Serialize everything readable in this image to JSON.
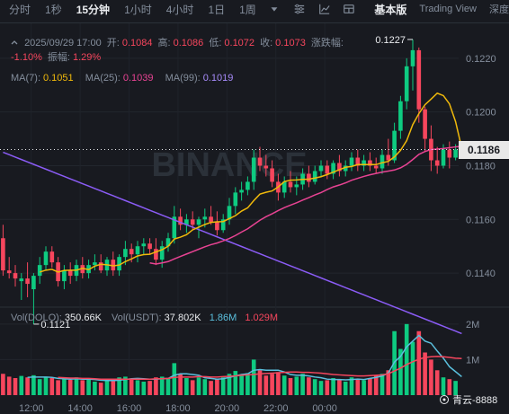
{
  "toolbar": {
    "timeframes": [
      "分时",
      "1秒",
      "15分钟",
      "1小时",
      "4小时",
      "1日",
      "1周"
    ],
    "active_timeframe": "15分钟",
    "view_basic": "基本版",
    "view_tradingview": "Trading View",
    "view_depth": "深度"
  },
  "ohlc_info": {
    "datetime": "2025/09/29 17:00",
    "open_label": "开:",
    "open": "0.1084",
    "high_label": "高:",
    "high": "0.1086",
    "low_label": "低:",
    "low": "0.1072",
    "close_label": "收:",
    "close": "0.1073",
    "change_label": "涨跌幅:",
    "change": "-1.10%",
    "amplitude_label": "振幅:",
    "amplitude": "1.29%"
  },
  "ma_info": {
    "ma7_label": "MA(7):",
    "ma7": "0.1051",
    "ma25_label": "MA(25):",
    "ma25": "0.1039",
    "ma99_label": "MA(99):",
    "ma99": "0.1019"
  },
  "volume_info": {
    "vol_label": "Vol(DOLO):",
    "vol": "350.66K",
    "usdt_label": "Vol(USDT):",
    "usdt": "37.802K",
    "ma_a": "1.86M",
    "ma_b": "1.029M"
  },
  "current_price": "0.1186",
  "watermark": "BINANCE",
  "credit": "青云-8888",
  "colors": {
    "up": "#0ecb81",
    "down": "#f6465d",
    "ma7": "#f0b90b",
    "ma25": "#e84393",
    "ma99": "#8b5cf6",
    "vol_ma_a": "#5bc0de",
    "vol_ma_b": "#f6465d"
  },
  "chart_data": {
    "type": "candlestick",
    "price_axis": {
      "ticks": [
        "0.1220",
        "0.1200",
        "0.1180",
        "0.1160",
        "0.1140"
      ],
      "range": [
        0.1128,
        0.1233
      ]
    },
    "volume_axis": {
      "ticks": [
        "2M",
        "1M"
      ],
      "range": [
        0,
        2400000
      ]
    },
    "time_axis": [
      "12:00",
      "14:00",
      "16:00",
      "18:00",
      "20:00",
      "22:00",
      "00:00"
    ],
    "annotations": {
      "high": "0.1227",
      "low": "0.1121"
    },
    "candles": [
      {
        "o": 0.1153,
        "h": 0.1158,
        "l": 0.1139,
        "c": 0.1141,
        "v": 600000
      },
      {
        "o": 0.1141,
        "h": 0.1146,
        "l": 0.1138,
        "c": 0.114,
        "v": 520000
      },
      {
        "o": 0.114,
        "h": 0.1143,
        "l": 0.1135,
        "c": 0.1138,
        "v": 480000
      },
      {
        "o": 0.1137,
        "h": 0.114,
        "l": 0.113,
        "c": 0.1138,
        "v": 540000
      },
      {
        "o": 0.1138,
        "h": 0.1144,
        "l": 0.1131,
        "c": 0.1136,
        "v": 500000
      },
      {
        "o": 0.1134,
        "h": 0.114,
        "l": 0.1121,
        "c": 0.1139,
        "v": 560000
      },
      {
        "o": 0.1139,
        "h": 0.1146,
        "l": 0.1136,
        "c": 0.1143,
        "v": 450000
      },
      {
        "o": 0.1143,
        "h": 0.115,
        "l": 0.1141,
        "c": 0.1148,
        "v": 520000
      },
      {
        "o": 0.1148,
        "h": 0.115,
        "l": 0.1142,
        "c": 0.1144,
        "v": 480000
      },
      {
        "o": 0.1144,
        "h": 0.1146,
        "l": 0.1135,
        "c": 0.1137,
        "v": 420000
      },
      {
        "o": 0.1137,
        "h": 0.1143,
        "l": 0.1134,
        "c": 0.1141,
        "v": 460000
      },
      {
        "o": 0.1141,
        "h": 0.1144,
        "l": 0.1136,
        "c": 0.1139,
        "v": 430000
      },
      {
        "o": 0.1139,
        "h": 0.1145,
        "l": 0.1137,
        "c": 0.1143,
        "v": 500000
      },
      {
        "o": 0.1143,
        "h": 0.1146,
        "l": 0.1138,
        "c": 0.114,
        "v": 420000
      },
      {
        "o": 0.114,
        "h": 0.1145,
        "l": 0.1138,
        "c": 0.1143,
        "v": 470000
      },
      {
        "o": 0.1143,
        "h": 0.1147,
        "l": 0.1141,
        "c": 0.1144,
        "v": 380000
      },
      {
        "o": 0.1144,
        "h": 0.1147,
        "l": 0.114,
        "c": 0.1141,
        "v": 350000
      },
      {
        "o": 0.1141,
        "h": 0.1146,
        "l": 0.1139,
        "c": 0.1145,
        "v": 450000
      },
      {
        "o": 0.1145,
        "h": 0.1148,
        "l": 0.1139,
        "c": 0.1141,
        "v": 400000
      },
      {
        "o": 0.1141,
        "h": 0.1147,
        "l": 0.1139,
        "c": 0.1146,
        "v": 500000
      },
      {
        "o": 0.1146,
        "h": 0.1152,
        "l": 0.1143,
        "c": 0.1149,
        "v": 520000
      },
      {
        "o": 0.1149,
        "h": 0.1151,
        "l": 0.1144,
        "c": 0.1147,
        "v": 450000
      },
      {
        "o": 0.1147,
        "h": 0.1152,
        "l": 0.1144,
        "c": 0.115,
        "v": 420000
      },
      {
        "o": 0.115,
        "h": 0.1153,
        "l": 0.1147,
        "c": 0.1151,
        "v": 380000
      },
      {
        "o": 0.1151,
        "h": 0.1153,
        "l": 0.1147,
        "c": 0.1149,
        "v": 400000
      },
      {
        "o": 0.1149,
        "h": 0.1153,
        "l": 0.1143,
        "c": 0.1145,
        "v": 500000
      },
      {
        "o": 0.1145,
        "h": 0.1152,
        "l": 0.1142,
        "c": 0.115,
        "v": 520000
      },
      {
        "o": 0.115,
        "h": 0.1155,
        "l": 0.1148,
        "c": 0.1153,
        "v": 480000
      },
      {
        "o": 0.1153,
        "h": 0.1165,
        "l": 0.1151,
        "c": 0.1161,
        "v": 900000
      },
      {
        "o": 0.1161,
        "h": 0.1164,
        "l": 0.1156,
        "c": 0.1158,
        "v": 600000
      },
      {
        "o": 0.1158,
        "h": 0.1162,
        "l": 0.1155,
        "c": 0.116,
        "v": 480000
      },
      {
        "o": 0.116,
        "h": 0.1163,
        "l": 0.1156,
        "c": 0.1158,
        "v": 420000
      },
      {
        "o": 0.1158,
        "h": 0.1161,
        "l": 0.1153,
        "c": 0.116,
        "v": 500000
      },
      {
        "o": 0.116,
        "h": 0.1164,
        "l": 0.1157,
        "c": 0.1161,
        "v": 450000
      },
      {
        "o": 0.1161,
        "h": 0.1165,
        "l": 0.1158,
        "c": 0.1159,
        "v": 400000
      },
      {
        "o": 0.1159,
        "h": 0.1163,
        "l": 0.1154,
        "c": 0.1156,
        "v": 460000
      },
      {
        "o": 0.1156,
        "h": 0.1162,
        "l": 0.1155,
        "c": 0.116,
        "v": 500000
      },
      {
        "o": 0.116,
        "h": 0.1168,
        "l": 0.1158,
        "c": 0.1165,
        "v": 600000
      },
      {
        "o": 0.1165,
        "h": 0.1172,
        "l": 0.1162,
        "c": 0.117,
        "v": 680000
      },
      {
        "o": 0.117,
        "h": 0.1174,
        "l": 0.1167,
        "c": 0.1171,
        "v": 580000
      },
      {
        "o": 0.1171,
        "h": 0.1176,
        "l": 0.1169,
        "c": 0.1174,
        "v": 620000
      },
      {
        "o": 0.1174,
        "h": 0.1186,
        "l": 0.1171,
        "c": 0.1183,
        "v": 1000000
      },
      {
        "o": 0.1183,
        "h": 0.1187,
        "l": 0.1178,
        "c": 0.118,
        "v": 700000
      },
      {
        "o": 0.118,
        "h": 0.1184,
        "l": 0.1176,
        "c": 0.1179,
        "v": 550000
      },
      {
        "o": 0.1179,
        "h": 0.1182,
        "l": 0.1172,
        "c": 0.1174,
        "v": 600000
      },
      {
        "o": 0.1174,
        "h": 0.1177,
        "l": 0.1167,
        "c": 0.117,
        "v": 650000
      },
      {
        "o": 0.117,
        "h": 0.1176,
        "l": 0.1168,
        "c": 0.1174,
        "v": 550000
      },
      {
        "o": 0.1174,
        "h": 0.1178,
        "l": 0.117,
        "c": 0.1172,
        "v": 480000
      },
      {
        "o": 0.1172,
        "h": 0.1176,
        "l": 0.1169,
        "c": 0.1173,
        "v": 520000
      },
      {
        "o": 0.1173,
        "h": 0.1179,
        "l": 0.1171,
        "c": 0.1177,
        "v": 600000
      },
      {
        "o": 0.1177,
        "h": 0.118,
        "l": 0.1172,
        "c": 0.1174,
        "v": 500000
      },
      {
        "o": 0.1174,
        "h": 0.118,
        "l": 0.1173,
        "c": 0.1178,
        "v": 450000
      },
      {
        "o": 0.1178,
        "h": 0.1182,
        "l": 0.1176,
        "c": 0.118,
        "v": 400000
      },
      {
        "o": 0.118,
        "h": 0.1182,
        "l": 0.1175,
        "c": 0.1177,
        "v": 420000
      },
      {
        "o": 0.1177,
        "h": 0.1182,
        "l": 0.1175,
        "c": 0.1181,
        "v": 480000
      },
      {
        "o": 0.1181,
        "h": 0.1184,
        "l": 0.1176,
        "c": 0.1178,
        "v": 450000
      },
      {
        "o": 0.1178,
        "h": 0.1182,
        "l": 0.1176,
        "c": 0.118,
        "v": 380000
      },
      {
        "o": 0.118,
        "h": 0.1185,
        "l": 0.1178,
        "c": 0.1183,
        "v": 500000
      },
      {
        "o": 0.1183,
        "h": 0.1186,
        "l": 0.1178,
        "c": 0.118,
        "v": 450000
      },
      {
        "o": 0.118,
        "h": 0.1184,
        "l": 0.1178,
        "c": 0.1182,
        "v": 420000
      },
      {
        "o": 0.1182,
        "h": 0.1185,
        "l": 0.1178,
        "c": 0.118,
        "v": 480000
      },
      {
        "o": 0.118,
        "h": 0.1183,
        "l": 0.1177,
        "c": 0.1179,
        "v": 550000
      },
      {
        "o": 0.1179,
        "h": 0.1186,
        "l": 0.1177,
        "c": 0.1184,
        "v": 600000
      },
      {
        "o": 0.1184,
        "h": 0.119,
        "l": 0.118,
        "c": 0.1182,
        "v": 700000
      },
      {
        "o": 0.1182,
        "h": 0.1196,
        "l": 0.1181,
        "c": 0.1193,
        "v": 1800000
      },
      {
        "o": 0.1193,
        "h": 0.1206,
        "l": 0.119,
        "c": 0.1204,
        "v": 1300000
      },
      {
        "o": 0.1204,
        "h": 0.122,
        "l": 0.1201,
        "c": 0.1217,
        "v": 2000000
      },
      {
        "o": 0.1217,
        "h": 0.1227,
        "l": 0.1208,
        "c": 0.1223,
        "v": 1500000
      },
      {
        "o": 0.1223,
        "h": 0.1224,
        "l": 0.1196,
        "c": 0.1201,
        "v": 1800000
      },
      {
        "o": 0.1201,
        "h": 0.1202,
        "l": 0.1185,
        "c": 0.119,
        "v": 1200000
      },
      {
        "o": 0.119,
        "h": 0.1195,
        "l": 0.1178,
        "c": 0.1182,
        "v": 1000000
      },
      {
        "o": 0.1182,
        "h": 0.1187,
        "l": 0.1177,
        "c": 0.118,
        "v": 700000
      },
      {
        "o": 0.118,
        "h": 0.1188,
        "l": 0.1179,
        "c": 0.1186,
        "v": 500000
      },
      {
        "o": 0.1186,
        "h": 0.1189,
        "l": 0.1179,
        "c": 0.1183,
        "v": 450000
      },
      {
        "o": 0.1183,
        "h": 0.1188,
        "l": 0.1182,
        "c": 0.1186,
        "v": 400000
      }
    ],
    "ma7": [
      null,
      null,
      null,
      null,
      null,
      null,
      0.11404,
      0.11411,
      0.11414,
      0.11404,
      0.1141,
      0.11411,
      0.11411,
      0.11418,
      0.11413,
      0.11426,
      0.11433,
      0.11431,
      0.11427,
      0.1143,
      0.11443,
      0.11453,
      0.11464,
      0.11469,
      0.1147,
      0.11479,
      0.11487,
      0.115,
      0.11527,
      0.11534,
      0.11543,
      0.11561,
      0.11571,
      0.11581,
      0.11589,
      0.11591,
      0.11592,
      0.11603,
      0.11614,
      0.11631,
      0.11643,
      0.1167,
      0.11694,
      0.11701,
      0.11706,
      0.11721,
      0.11741,
      0.11746,
      0.11747,
      0.11749,
      0.1175,
      0.11754,
      0.11759,
      0.11767,
      0.11776,
      0.11785,
      0.11794,
      0.11797,
      0.11804,
      0.11804,
      0.11804,
      0.11804,
      0.11811,
      0.11816,
      0.11833,
      0.11857,
      0.11893,
      0.11953,
      0.11994,
      0.12027,
      0.12048,
      0.1207,
      0.12061,
      0.1203,
      0.11964,
      0.11866
    ],
    "ma25": [
      null,
      null,
      null,
      null,
      null,
      null,
      null,
      null,
      null,
      null,
      null,
      null,
      null,
      null,
      null,
      null,
      null,
      null,
      null,
      null,
      null,
      null,
      null,
      null,
      0.11438,
      0.11434,
      0.11438,
      0.11443,
      0.11453,
      0.11462,
      0.11471,
      0.1148,
      0.11489,
      0.11498,
      0.11506,
      0.11512,
      0.1152,
      0.11529,
      0.1154,
      0.11553,
      0.11565,
      0.11581,
      0.11597,
      0.1161,
      0.11621,
      0.11633,
      0.11644,
      0.11653,
      0.11662,
      0.11672,
      0.11681,
      0.11691,
      0.117,
      0.11711,
      0.11721,
      0.11728,
      0.11736,
      0.11746,
      0.11753,
      0.1176,
      0.11766,
      0.11771,
      0.11776,
      0.1178,
      0.11784,
      0.11792,
      0.11805,
      0.11823,
      0.11842,
      0.11853,
      0.1186,
      0.11862,
      0.11864,
      0.11867,
      0.1187,
      0.11872
    ],
    "ma99": [
      0.1185,
      0.11841,
      0.11832,
      0.11823,
      0.11814,
      0.11805,
      0.11796,
      0.11787,
      0.11778,
      0.11769,
      0.1176,
      0.11751,
      0.11742,
      0.11733,
      0.11724,
      0.11715,
      0.11706,
      0.11697,
      0.11688,
      0.11679,
      0.1167,
      0.11661,
      0.11652,
      0.11643,
      0.11634,
      0.11625,
      0.11616,
      0.11607,
      0.11598,
      0.11589,
      0.1158,
      0.11571,
      0.11562,
      0.11553,
      0.11544,
      0.11535,
      0.11526,
      0.11517,
      0.11508,
      0.11499,
      0.1149,
      0.11481,
      0.11472,
      0.11463,
      0.11454,
      0.11445,
      0.11436,
      0.11427,
      0.11418,
      0.11409,
      0.114,
      0.11391,
      0.11382,
      0.11373,
      0.11364,
      0.11355,
      0.11346,
      0.11337,
      0.11328,
      0.11319,
      0.1131,
      0.11301,
      0.11292,
      0.11283,
      0.11274,
      0.11265,
      0.11256,
      0.11247,
      0.11238,
      0.11229,
      0.1122,
      0.11211,
      0.11202,
      0.11193,
      0.11184,
      0.11175
    ],
    "vol_ma_a": [
      null,
      null,
      null,
      null,
      500000,
      510000,
      510000,
      510000,
      500000,
      470000,
      460000,
      450000,
      460000,
      450000,
      450000,
      440000,
      420000,
      410000,
      410000,
      420000,
      440000,
      460000,
      470000,
      460000,
      450000,
      450000,
      460000,
      470000,
      560000,
      600000,
      600000,
      580000,
      560000,
      490000,
      470000,
      450000,
      460000,
      500000,
      540000,
      580000,
      600000,
      700000,
      720000,
      700000,
      700000,
      700000,
      650000,
      580000,
      560000,
      560000,
      540000,
      510000,
      490000,
      450000,
      440000,
      440000,
      430000,
      440000,
      450000,
      440000,
      470000,
      500000,
      540000,
      620000,
      930000,
      1090000,
      1360000,
      1520000,
      1680000,
      1520000,
      1460000,
      1240000,
      1040000,
      800000,
      660000,
      520000
    ],
    "vol_ma_b": [
      null,
      null,
      null,
      null,
      null,
      null,
      null,
      null,
      null,
      500000,
      490000,
      480000,
      480000,
      470000,
      470000,
      460000,
      450000,
      450000,
      450000,
      450000,
      450000,
      450000,
      450000,
      450000,
      450000,
      460000,
      460000,
      470000,
      500000,
      510000,
      510000,
      510000,
      520000,
      520000,
      510000,
      510000,
      520000,
      530000,
      540000,
      560000,
      570000,
      580000,
      600000,
      610000,
      620000,
      630000,
      640000,
      650000,
      650000,
      640000,
      640000,
      630000,
      620000,
      600000,
      580000,
      570000,
      560000,
      550000,
      540000,
      540000,
      550000,
      560000,
      570000,
      600000,
      680000,
      760000,
      860000,
      940000,
      1010000,
      1060000,
      1080000,
      1090000,
      1080000,
      1060000,
      1040000,
      1029000
    ]
  }
}
